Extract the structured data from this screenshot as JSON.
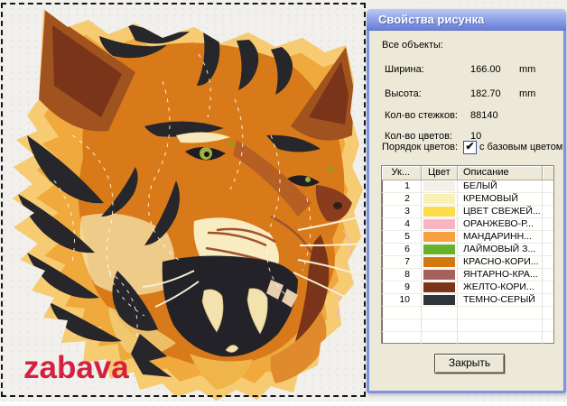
{
  "canvas": {
    "watermark": "zabava",
    "watermark_color": "#d5203f",
    "design_name": "tiger-head-embroidery"
  },
  "dialog": {
    "title": "Свойства рисунка",
    "section_label": "Все объекты:",
    "fields": [
      {
        "label": "Ширина:",
        "value": "166.00",
        "unit": "mm"
      },
      {
        "label": "Высота:",
        "value": "182.70",
        "unit": "mm"
      },
      {
        "label": "Кол-во стежков:",
        "value": "88140",
        "unit": ""
      },
      {
        "label": "Кол-во цветов:",
        "value": "10",
        "unit": ""
      }
    ],
    "color_order": {
      "label": "Порядок цветов:",
      "checkbox_checked": true,
      "check_glyph": "✔",
      "checkbox_label": "с базовым цветом"
    },
    "table": {
      "headers": [
        "Ук...",
        "Цвет",
        "Описание"
      ],
      "rows": [
        {
          "num": "1",
          "color": "#f2f0e8",
          "name": "БЕЛЫЙ"
        },
        {
          "num": "2",
          "color": "#fbf0b5",
          "name": "КРЕМОВЫЙ"
        },
        {
          "num": "3",
          "color": "#fddc4a",
          "name": "ЦВЕТ СВЕЖЕЙ..."
        },
        {
          "num": "4",
          "color": "#f8b4c0",
          "name": "ОРАНЖЕВО-Р..."
        },
        {
          "num": "5",
          "color": "#f99e41",
          "name": "МАНДАРИНН..."
        },
        {
          "num": "6",
          "color": "#68b22b",
          "name": "ЛАЙМОВЫЙ З..."
        },
        {
          "num": "7",
          "color": "#d3770f",
          "name": "КРАСНО-КОРИ..."
        },
        {
          "num": "8",
          "color": "#a5615a",
          "name": "ЯНТАРНО-КРА..."
        },
        {
          "num": "9",
          "color": "#7a3419",
          "name": "ЖЕЛТО-КОРИ..."
        },
        {
          "num": "10",
          "color": "#2e343a",
          "name": "ТЕМНО-СЕРЫЙ"
        }
      ]
    },
    "close_button": "Закрыть"
  }
}
